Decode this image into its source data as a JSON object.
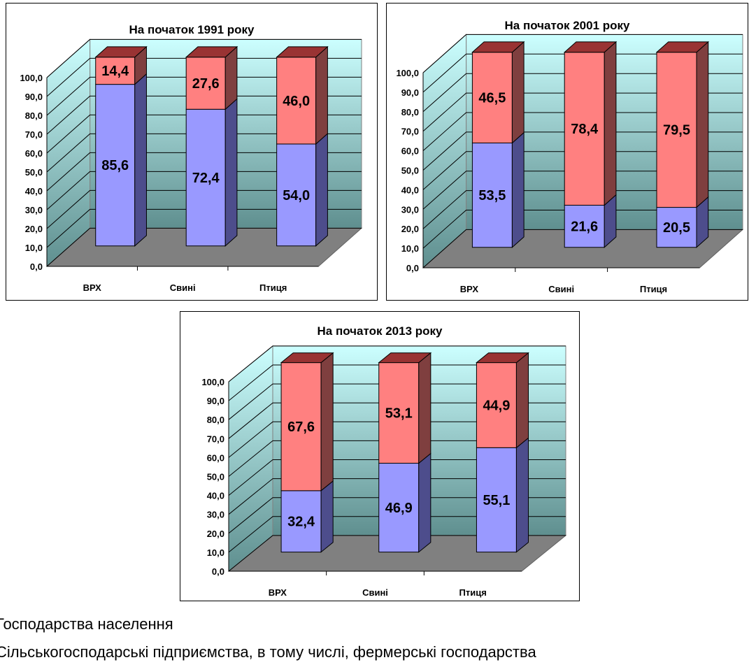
{
  "chart_data": [
    {
      "type": "bar",
      "title": "На початок 1991 року",
      "categories": [
        "ВРХ",
        "Свині",
        "Птиця"
      ],
      "series": [
        {
          "values": [
            85.6,
            72.4,
            54.0
          ],
          "labels": [
            "85,6",
            "72,4",
            "54,0"
          ],
          "color": "#9999FF",
          "side": "#4D4D8C",
          "top": "#B3B3FF"
        },
        {
          "values": [
            14.4,
            27.6,
            46.0
          ],
          "labels": [
            "14,4",
            "27,6",
            "46,0"
          ],
          "color": "#FF8080",
          "side": "#7F3F3F",
          "top": "#993333"
        }
      ],
      "yticks": [
        "0,0",
        "10,0",
        "20,0",
        "30,0",
        "40,0",
        "50,0",
        "60,0",
        "70,0",
        "80,0",
        "90,0",
        "100,0"
      ],
      "ylim": [
        0,
        100
      ],
      "stacked": true,
      "grid": true
    },
    {
      "type": "bar",
      "title": "На початок 2001 року",
      "categories": [
        "ВРХ",
        "Свині",
        "Птиця"
      ],
      "series": [
        {
          "values": [
            53.5,
            21.6,
            20.5
          ],
          "labels": [
            "53,5",
            "21,6",
            "20,5"
          ],
          "color": "#9999FF",
          "side": "#4D4D8C",
          "top": "#B3B3FF"
        },
        {
          "values": [
            46.5,
            78.4,
            79.5
          ],
          "labels": [
            "46,5",
            "78,4",
            "79,5"
          ],
          "color": "#FF8080",
          "side": "#7F3F3F",
          "top": "#993333"
        }
      ],
      "yticks": [
        "0,0",
        "10,0",
        "20,0",
        "30,0",
        "40,0",
        "50,0",
        "60,0",
        "70,0",
        "80,0",
        "90,0",
        "100,0"
      ],
      "ylim": [
        0,
        100
      ],
      "stacked": true,
      "grid": true
    },
    {
      "type": "bar",
      "title": "На початок 2013 року",
      "categories": [
        "ВРХ",
        "Свині",
        "Птиця"
      ],
      "series": [
        {
          "values": [
            32.4,
            46.9,
            55.1
          ],
          "labels": [
            "32,4",
            "46,9",
            "55,1"
          ],
          "color": "#9999FF",
          "side": "#4D4D8C",
          "top": "#B3B3FF"
        },
        {
          "values": [
            67.6,
            53.1,
            44.9
          ],
          "labels": [
            "67,6",
            "53,1",
            "44,9"
          ],
          "color": "#FF8080",
          "side": "#7F3F3F",
          "top": "#993333"
        }
      ],
      "yticks": [
        "0,0",
        "10,0",
        "20,0",
        "30,0",
        "40,0",
        "50,0",
        "60,0",
        "70,0",
        "80,0",
        "90,0",
        "100,0"
      ],
      "ylim": [
        0,
        100
      ],
      "stacked": true,
      "grid": true
    }
  ],
  "legend": {
    "line1": "Господарства населення",
    "line2": "Сільськогосподарські підприємства, в тому числі, фермерські господарства"
  }
}
